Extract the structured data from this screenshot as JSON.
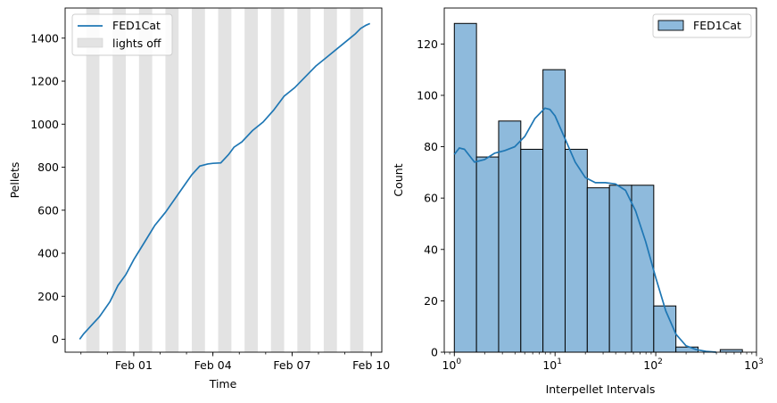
{
  "chart_data": [
    {
      "type": "line",
      "ylabel": "Pellets",
      "xlabel": "Time",
      "x_tick_labels": [
        "Feb 01",
        "Feb 04",
        "Feb 07",
        "Feb 10"
      ],
      "y_ticks": [
        0,
        200,
        400,
        600,
        800,
        1000,
        1200,
        1400
      ],
      "ylim": [
        -60,
        1540
      ],
      "xlim_days_from_feb01": [
        -2.6,
        9.4
      ],
      "legend": [
        "FED1Cat",
        "lights off"
      ],
      "legend_position": "upper left",
      "lights_off_days_from_feb01": [
        [
          -1.8,
          -1.3
        ],
        [
          -0.8,
          -0.3
        ],
        [
          0.2,
          0.7
        ],
        [
          1.2,
          1.7
        ],
        [
          2.2,
          2.7
        ],
        [
          3.2,
          3.7
        ],
        [
          4.2,
          4.7
        ],
        [
          5.2,
          5.7
        ],
        [
          6.2,
          6.7
        ],
        [
          7.2,
          7.7
        ],
        [
          8.2,
          8.7
        ]
      ],
      "series": [
        {
          "name": "FED1Cat",
          "color": "#1f77b4",
          "x_days_from_feb01": [
            -2.05,
            -1.9,
            -1.6,
            -1.3,
            -0.9,
            -0.6,
            -0.3,
            0.0,
            0.4,
            0.8,
            1.2,
            1.6,
            2.0,
            2.2,
            2.5,
            2.8,
            3.0,
            3.3,
            3.6,
            3.8,
            4.1,
            4.5,
            4.9,
            5.3,
            5.7,
            6.1,
            6.5,
            6.9,
            7.3,
            7.7,
            8.1,
            8.4,
            8.6,
            8.8,
            8.95
          ],
          "y": [
            0,
            25,
            65,
            105,
            175,
            250,
            300,
            370,
            450,
            530,
            590,
            660,
            730,
            765,
            805,
            815,
            818,
            820,
            860,
            893,
            918,
            970,
            1010,
            1065,
            1130,
            1170,
            1220,
            1270,
            1310,
            1350,
            1390,
            1420,
            1445,
            1460,
            1468
          ]
        }
      ]
    },
    {
      "type": "histogram",
      "xlabel": "Interpellet Intervals",
      "ylabel": "Count",
      "x_scale": "log",
      "x_tick_labels": [
        "10^0",
        "10^1",
        "10^2",
        "10^3"
      ],
      "y_ticks": [
        0,
        20,
        40,
        60,
        80,
        100,
        120
      ],
      "ylim": [
        0,
        134
      ],
      "xlim_log10": [
        -0.1,
        3.0
      ],
      "legend": [
        "FED1Cat"
      ],
      "legend_position": "upper right",
      "bin_width_log10": 0.22,
      "bins": [
        {
          "left_log10": 0.0,
          "count": 128
        },
        {
          "left_log10": 0.22,
          "count": 76
        },
        {
          "left_log10": 0.44,
          "count": 90
        },
        {
          "left_log10": 0.66,
          "count": 79
        },
        {
          "left_log10": 0.88,
          "count": 110
        },
        {
          "left_log10": 1.1,
          "count": 79
        },
        {
          "left_log10": 1.32,
          "count": 64
        },
        {
          "left_log10": 1.54,
          "count": 65
        },
        {
          "left_log10": 1.76,
          "count": 65
        },
        {
          "left_log10": 1.98,
          "count": 18
        },
        {
          "left_log10": 2.2,
          "count": 2
        },
        {
          "left_log10": 2.42,
          "count": 0
        },
        {
          "left_log10": 2.64,
          "count": 1
        }
      ],
      "kde": {
        "color": "#1f77b4",
        "x_log10": [
          0.0,
          0.05,
          0.1,
          0.2,
          0.3,
          0.4,
          0.5,
          0.6,
          0.7,
          0.8,
          0.9,
          0.95,
          1.0,
          1.1,
          1.2,
          1.3,
          1.4,
          1.5,
          1.6,
          1.7,
          1.8,
          1.9,
          2.0,
          2.1,
          2.2,
          2.3,
          2.4,
          2.5,
          2.6
        ],
        "y": [
          77,
          79.5,
          79,
          74,
          75,
          77.5,
          78.5,
          80,
          84,
          91,
          95,
          94.5,
          92,
          83,
          74,
          68,
          66,
          66,
          65.5,
          63,
          55,
          43,
          29,
          16,
          7,
          2.5,
          1,
          0.3,
          0
        ]
      },
      "bar_fill": "#8ebadc",
      "bar_edge": "#000000"
    }
  ]
}
